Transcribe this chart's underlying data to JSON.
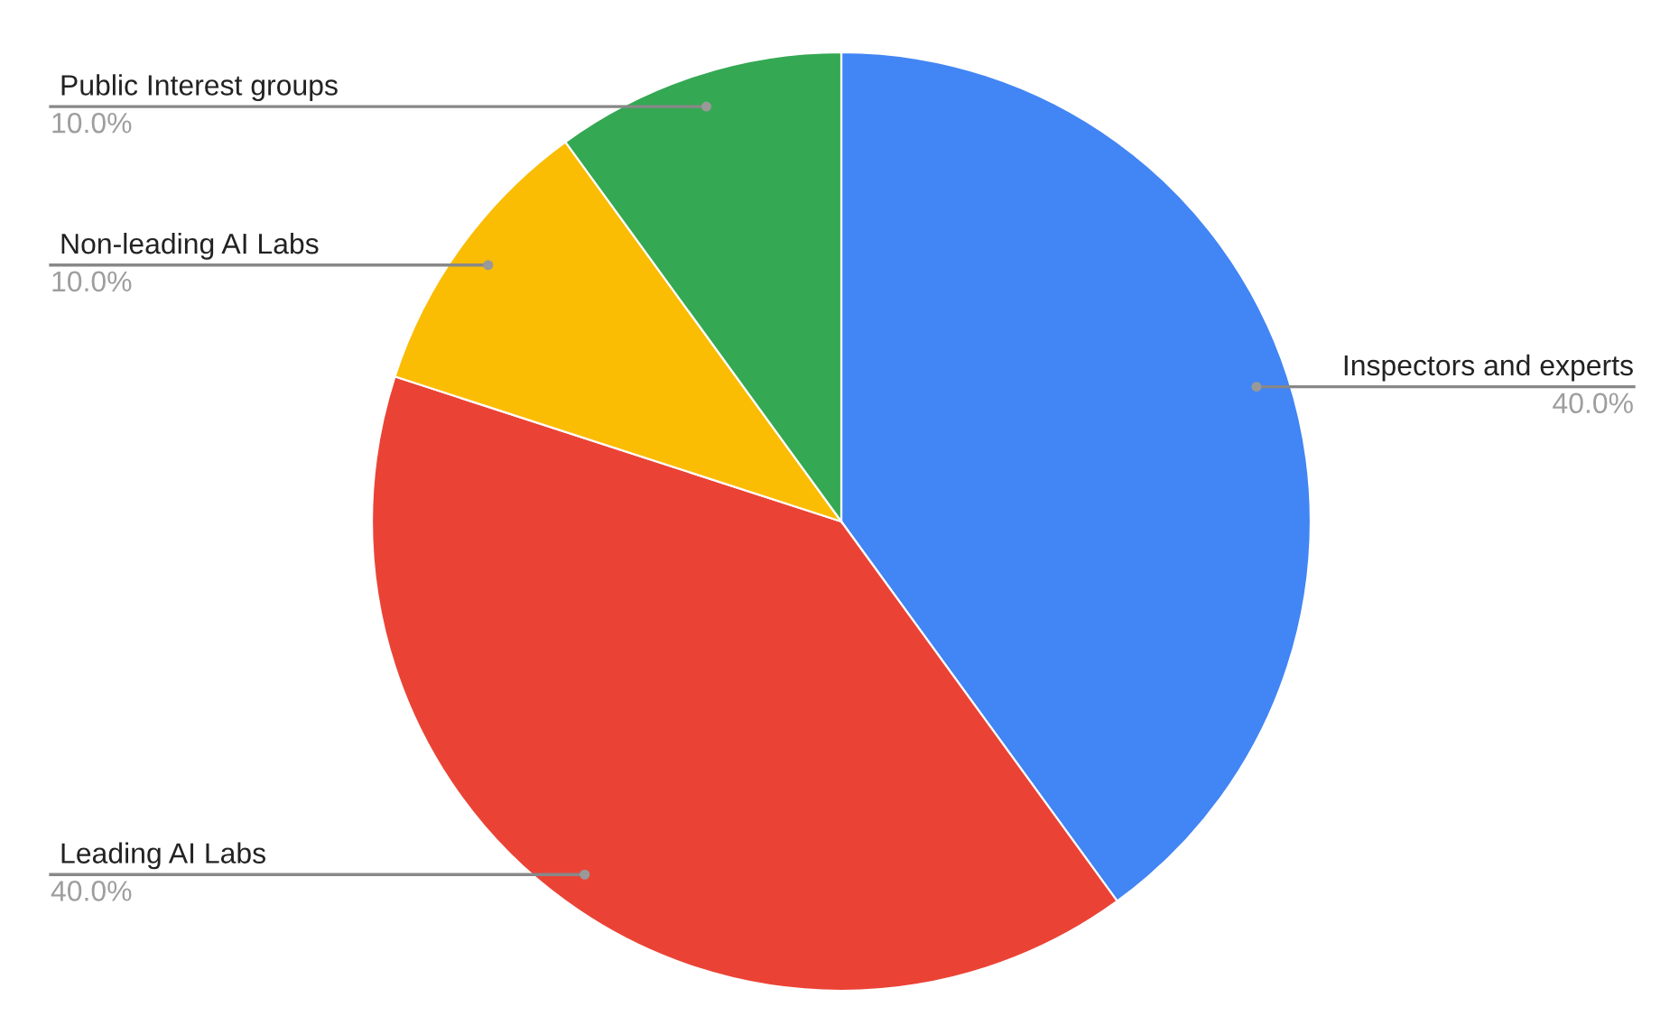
{
  "chart_data": {
    "type": "pie",
    "categories": [
      "Inspectors and experts",
      "Leading AI Labs",
      "Non-leading AI Labs",
      "Public Interest groups"
    ],
    "values": [
      40,
      40,
      10,
      10
    ],
    "value_labels": [
      "40.0%",
      "40.0%",
      "10.0%",
      "10.0%"
    ],
    "colors": [
      "#4285f4",
      "#ea4335",
      "#fbbc04",
      "#34a853"
    ],
    "legend": false
  }
}
